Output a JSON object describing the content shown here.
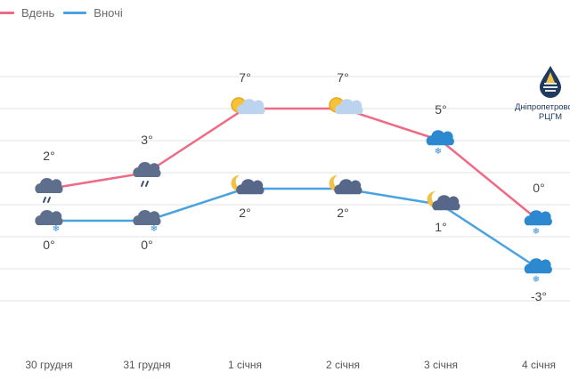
{
  "legend": {
    "day_label": "Вдень",
    "night_label": "Вночі"
  },
  "logo": {
    "line1": "Дніпропетровський",
    "line2": "РЦГМ"
  },
  "colors": {
    "day": "#ef6b85",
    "night": "#4aa3df",
    "grid": "#e3e3e3",
    "text": "#555555",
    "cloud": "#55698a",
    "sun": "#f7c23a",
    "moon": "#f2c14a",
    "snow": "#2f8fd8"
  },
  "chart_data": {
    "type": "line",
    "categories": [
      "30 грудня",
      "31 грудня",
      "1 січня",
      "2 січня",
      "3 січня",
      "4 січня"
    ],
    "series": [
      {
        "name": "Вдень",
        "values": [
          2,
          3,
          7,
          7,
          5,
          0
        ],
        "labels": [
          "2°",
          "3°",
          "7°",
          "7°",
          "5°",
          "0°"
        ],
        "icons": [
          "cloudy-rain",
          "cloudy-rain",
          "sun-cloud",
          "sun-cloud",
          "cloud-snow",
          "cloud-snow"
        ]
      },
      {
        "name": "Вночі",
        "values": [
          0,
          0,
          2,
          2,
          1,
          -3
        ],
        "labels": [
          "0°",
          "0°",
          "2°",
          "2°",
          "1°",
          "-3°"
        ],
        "icons": [
          "cloudy-snow",
          "cloudy-snow",
          "moon-cloud",
          "moon-cloud",
          "moon-cloud",
          "cloud-snow"
        ]
      }
    ],
    "ylim": [
      -5,
      9
    ],
    "grid": true,
    "legend_position": "top-left"
  }
}
